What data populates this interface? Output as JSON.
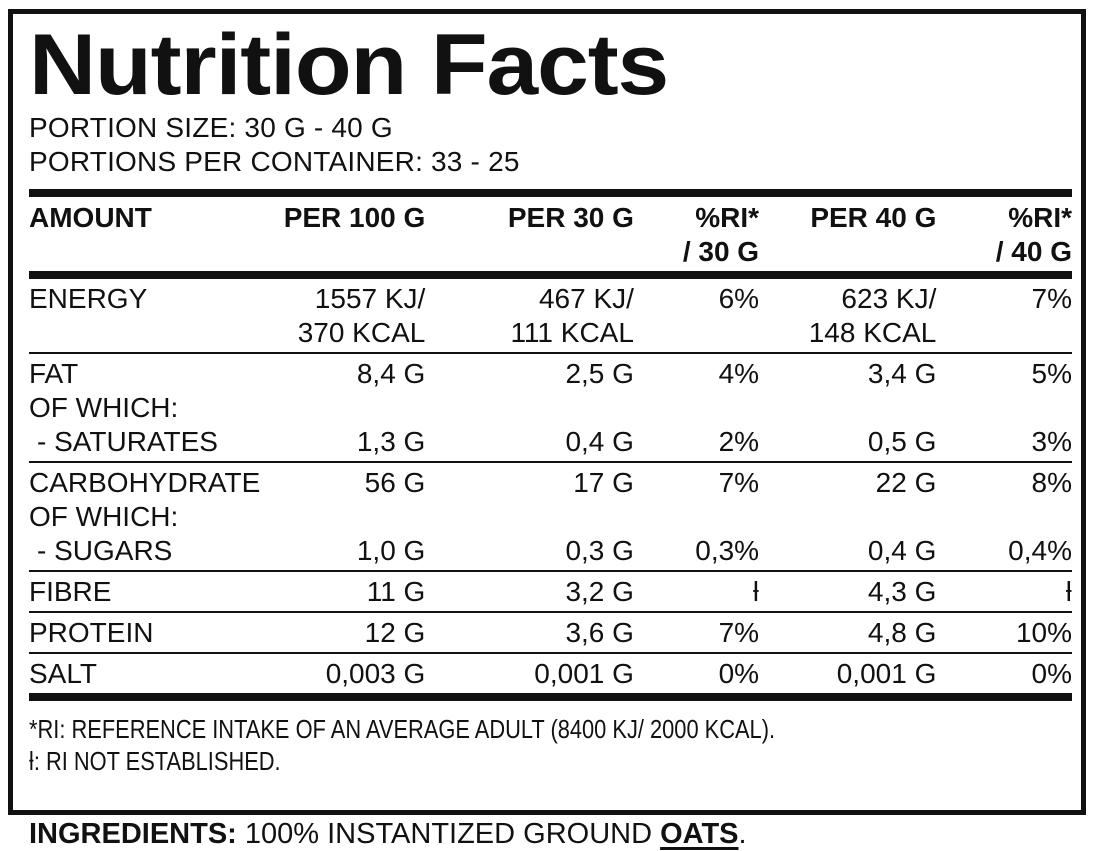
{
  "title": "Nutrition Facts",
  "serving_info": {
    "portion_size": "PORTION SIZE: 30 G - 40 G",
    "portions_per_container": "PORTIONS PER CONTAINER: 33 - 25"
  },
  "table": {
    "header": {
      "line1": [
        "AMOUNT",
        "PER 100 G",
        "PER 30 G",
        "%RI*",
        "PER 40 G",
        "%RI*"
      ],
      "line2": [
        "",
        "",
        "",
        "/ 30 G",
        "",
        "/ 40 G"
      ]
    },
    "rows": [
      {
        "name": "energy",
        "cells": [
          "ENERGY",
          "1557 KJ/",
          "467 KJ/",
          "6%",
          "623 KJ/",
          "7%"
        ]
      },
      {
        "name": "energy-kcal",
        "cells": [
          "",
          "370 KCAL",
          "111 KCAL",
          "",
          "148 KCAL",
          ""
        ]
      },
      {
        "name": "fat",
        "cells": [
          "FAT",
          "8,4 G",
          "2,5 G",
          "4%",
          "3,4 G",
          "5%"
        ]
      },
      {
        "name": "fat-of-which",
        "cells": [
          "OF WHICH:",
          "",
          "",
          "",
          "",
          ""
        ]
      },
      {
        "name": "saturates",
        "cells": [
          "- SATURATES",
          "1,3 G",
          "0,4 G",
          "2%",
          "0,5 G",
          "3%"
        ]
      },
      {
        "name": "carbohydrate",
        "cells": [
          "CARBOHYDRATE",
          "56 G",
          "17 G",
          "7%",
          "22 G",
          "8%"
        ]
      },
      {
        "name": "carb-of-which",
        "cells": [
          "OF WHICH:",
          "",
          "",
          "",
          "",
          ""
        ]
      },
      {
        "name": "sugars",
        "cells": [
          "- SUGARS",
          "1,0 G",
          "0,3 G",
          "0,3%",
          "0,4 G",
          "0,4%"
        ]
      },
      {
        "name": "fibre",
        "cells": [
          "FIBRE",
          "11 G",
          "3,2 G",
          "ƚ",
          "4,3 G",
          "ƚ"
        ]
      },
      {
        "name": "protein",
        "cells": [
          "PROTEIN",
          "12 G",
          "3,6 G",
          "7%",
          "4,8 G",
          "10%"
        ]
      },
      {
        "name": "salt",
        "cells": [
          "SALT",
          "0,003 G",
          "0,001 G",
          "0%",
          "0,001 G",
          "0%"
        ]
      }
    ]
  },
  "footnotes": {
    "reference_intake": "*RI: REFERENCE INTAKE OF AN AVERAGE ADULT (8400 KJ/ 2000 KCAL).",
    "not_established": "ƚ: RI NOT ESTABLISHED."
  },
  "ingredients": {
    "label": "INGREDIENTS:",
    "text": " 100% INSTANTIZED GROUND ",
    "emphasized": "OATS",
    "period": "."
  },
  "colors": {
    "ink": "#111111",
    "background": "#ffffff"
  }
}
